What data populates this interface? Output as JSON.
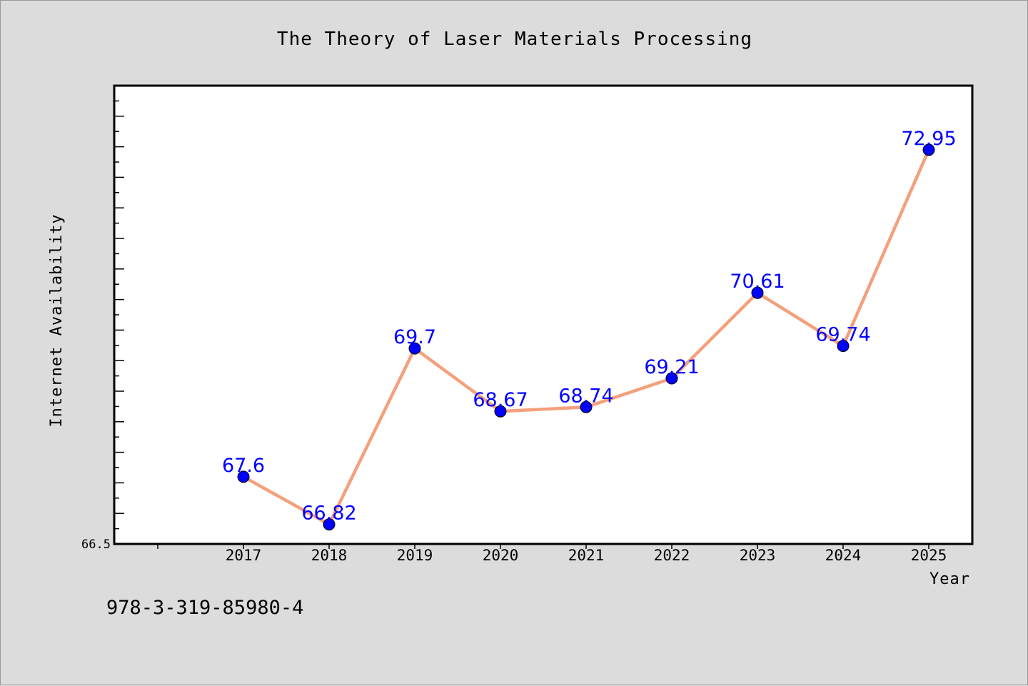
{
  "chart_data": {
    "type": "line",
    "title": "The Theory of Laser Materials Processing",
    "xlabel": "Year",
    "ylabel": "Internet Availability",
    "categories": [
      "2017",
      "2018",
      "2019",
      "2020",
      "2021",
      "2022",
      "2023",
      "2024",
      "2025"
    ],
    "series": [
      {
        "values": [
          67.6,
          66.82,
          69.7,
          68.67,
          68.74,
          69.21,
          70.61,
          69.74,
          72.95
        ]
      }
    ],
    "data_labels": [
      "67.6",
      "66.82",
      "69.7",
      "68.67",
      "68.74",
      "69.21",
      "70.61",
      "69.74",
      "72.95"
    ],
    "ylim": [
      66.5,
      74.0
    ],
    "y_tick_label": "66.5",
    "grid": false,
    "legend": "none",
    "line_color": "#f4a07c",
    "marker_color": "#0000ff",
    "label_color": "#0000ff"
  },
  "footnote": "978-3-319-85980-4"
}
